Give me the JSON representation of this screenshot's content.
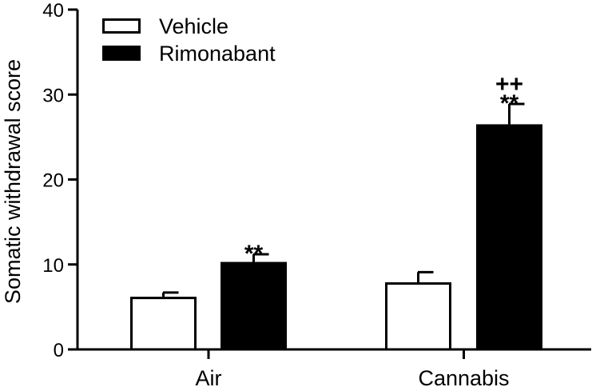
{
  "chart_data": {
    "type": "bar",
    "ylabel": "Somatic withdrawal score",
    "ylim": [
      0,
      40
    ],
    "yticks": [
      0,
      10,
      20,
      30,
      40
    ],
    "categories": [
      "Air",
      "Cannabis"
    ],
    "series": [
      {
        "name": "Vehicle",
        "fill": "#ffffff",
        "values": [
          6.2,
          7.9
        ],
        "errors": [
          0.5,
          1.2
        ]
      },
      {
        "name": "Rimonabant",
        "fill": "#000000",
        "values": [
          10.3,
          26.5
        ],
        "errors": [
          0.9,
          2.4
        ]
      }
    ],
    "annotations": [
      {
        "category": 0,
        "series": 1,
        "lines": [
          "**"
        ]
      },
      {
        "category": 1,
        "series": 1,
        "lines": [
          "++",
          "**"
        ]
      }
    ],
    "legend_position": "top-left",
    "grid": false
  }
}
